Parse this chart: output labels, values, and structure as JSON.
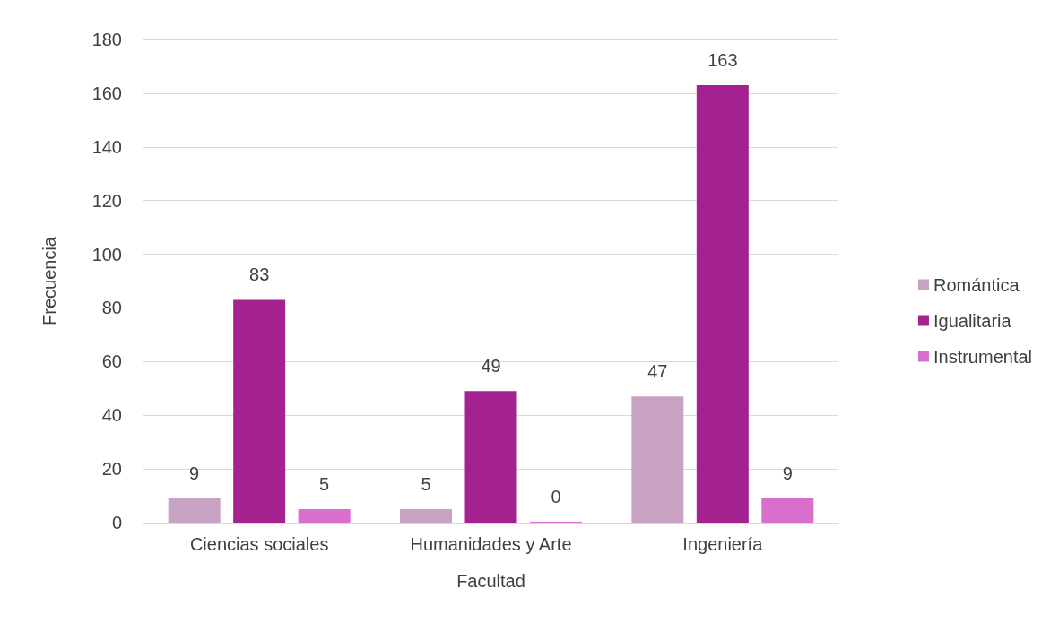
{
  "chart_data": {
    "type": "bar",
    "xlabel": "Facultad",
    "ylabel": "Frecuencia",
    "categories": [
      "Ciencias sociales",
      "Humanidades y Arte",
      "Ingeniería"
    ],
    "series": [
      {
        "name": "Romántica",
        "color": "#c8a2c2",
        "values": [
          9,
          5,
          47
        ]
      },
      {
        "name": "Igualitaria",
        "color": "#a3228f",
        "values": [
          83,
          49,
          163
        ]
      },
      {
        "name": "Instrumental",
        "color": "#d96fcd",
        "values": [
          5,
          0,
          9
        ]
      }
    ],
    "ylim": [
      0,
      180
    ],
    "yticks": [
      0,
      20,
      40,
      60,
      80,
      100,
      120,
      140,
      160,
      180
    ],
    "grid": "y",
    "legend": "right",
    "data_labels": true
  }
}
